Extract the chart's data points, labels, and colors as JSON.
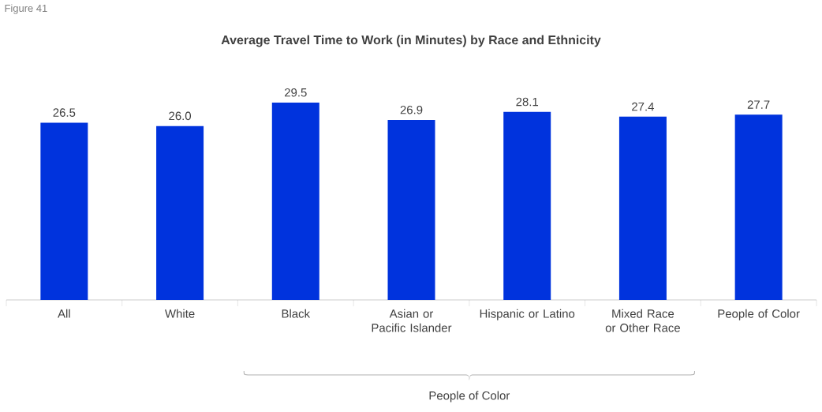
{
  "chart_data": {
    "type": "bar",
    "title": "Average Travel Time to Work (in Minutes) by Race and Ethnicity",
    "categories": [
      "All",
      "White",
      "Black",
      "Asian or Pacific Islander",
      "Hispanic or Latino",
      "Mixed Race or Other Race",
      "People of Color"
    ],
    "values": [
      26.5,
      26.0,
      29.5,
      26.9,
      28.1,
      27.4,
      27.7
    ],
    "color": "#0033dd",
    "tick_labels": "x",
    "value_labels": [
      "26.5",
      "26.0",
      "29.5",
      "26.9",
      "28.1",
      "27.4",
      "27.7"
    ],
    "annotations": [
      "Figure 41",
      "People of Color"
    ]
  }
}
